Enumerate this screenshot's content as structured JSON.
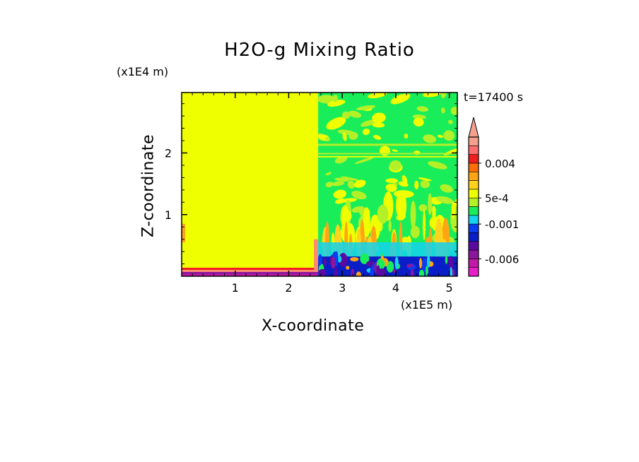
{
  "chart_data": {
    "type": "heatmap",
    "title": "H2O-g Mixing Ratio",
    "xlabel": "X-coordinate",
    "ylabel": "Z-coordinate",
    "x_unit": "(x1E5 m)",
    "y_unit": "(x1E4 m)",
    "time_label": "t=17400 s",
    "xlim": [
      0,
      5.15
    ],
    "ylim": [
      0,
      2.98
    ],
    "x_ticks": [
      "1",
      "2",
      "3",
      "4",
      "5"
    ],
    "y_ticks": [
      "1",
      "2"
    ],
    "x_tick_values": [
      1,
      2,
      3,
      4,
      5
    ],
    "y_tick_values": [
      1,
      2
    ],
    "colorbar": {
      "labels": [
        "0.004",
        "5e-4",
        "-0.001",
        "-0.006"
      ],
      "label_values": [
        0.004,
        0.0005,
        -0.001,
        -0.006
      ],
      "levels": [
        -0.009,
        -0.0075,
        -0.006,
        -0.0045,
        -0.003,
        -0.002,
        -0.001,
        -0.0005,
        0,
        0.0005,
        0.001,
        0.002,
        0.003,
        0.004,
        0.0055,
        0.007
      ],
      "colors": [
        "#e81ec8",
        "#c21aa8",
        "#8c169e",
        "#5a0aa0",
        "#0a1ec8",
        "#0a3cf0",
        "#14d2f0",
        "#19ee5a",
        "#b4f028",
        "#f0ff00",
        "#ffd21e",
        "#ffa514",
        "#ff6e0a",
        "#f01e1e",
        "#ff6e6e",
        "#f5a08c"
      ],
      "extend": "max"
    },
    "regions": [
      {
        "name": "left-domain",
        "x_range": [
          0,
          2.55
        ],
        "z_range": [
          0,
          2.98
        ],
        "dominant": "#f0ff00"
      },
      {
        "name": "right-domain",
        "x_range": [
          2.55,
          5.15
        ],
        "z_range": [
          0,
          2.98
        ],
        "dominant": "#19ee5a"
      }
    ],
    "grid": false
  }
}
